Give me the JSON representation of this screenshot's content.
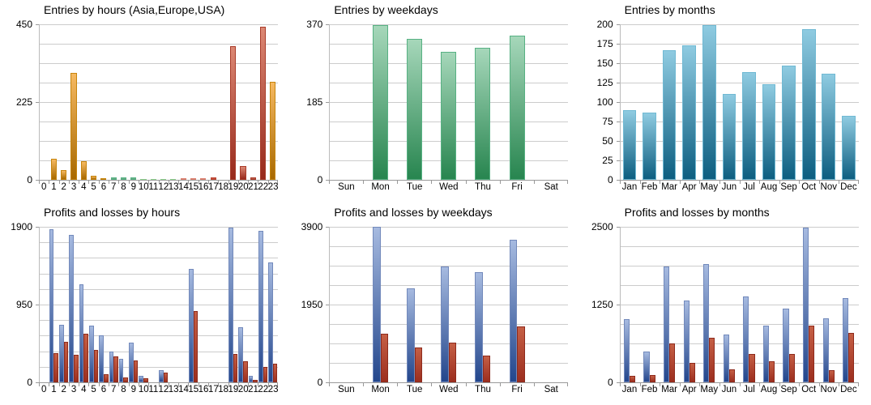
{
  "colors": {
    "background": "#ffffff",
    "gridline": "#cccccc",
    "axis": "#999999",
    "text": "#000000"
  },
  "palette": {
    "orange": {
      "top": "#f6b961",
      "bottom": "#a86900",
      "border": "#c6850e"
    },
    "green": {
      "top": "#a6d7ba",
      "bottom": "#27854f",
      "border": "#57b183"
    },
    "lightgreen": {
      "top": "#c9ecc9",
      "bottom": "#77c677",
      "border": "#8ed28e"
    },
    "salmon": {
      "top": "#f1a593",
      "bottom": "#d9603f",
      "border": "#db8170"
    },
    "red": {
      "top": "#d96551",
      "bottom": "#b23222",
      "border": "#ba4733"
    },
    "darkred": {
      "top": "#dc8874",
      "bottom": "#97291b",
      "border": "#a93b29"
    },
    "profitblue": {
      "top": "#a6bae0",
      "bottom": "#23468c",
      "border": "#7289bb"
    },
    "lossred": {
      "top": "#c55f45",
      "bottom": "#9c2e1e",
      "border": "#8e2a1c"
    },
    "teal": {
      "top": "#8fcbe1",
      "bottom": "#0d5e80",
      "border": "#70b9d3"
    }
  },
  "chart_data": [
    {
      "type": "bar",
      "title": "Entries by hours (Asia,Europe,USA)",
      "categories": [
        "0",
        "1",
        "2",
        "3",
        "4",
        "5",
        "6",
        "7",
        "8",
        "9",
        "10",
        "11",
        "12",
        "13",
        "14",
        "15",
        "16",
        "17",
        "18",
        "19",
        "20",
        "21",
        "22",
        "23"
      ],
      "values": [
        0,
        60,
        28,
        310,
        55,
        12,
        5,
        6,
        8,
        6,
        3,
        1,
        3,
        2,
        4,
        4,
        5,
        8,
        0,
        386,
        40,
        7,
        443,
        283
      ],
      "bar_colors": [
        "orange",
        "orange",
        "orange",
        "orange",
        "orange",
        "orange",
        "orange",
        "green",
        "green",
        "green",
        "lightgreen",
        "lightgreen",
        "lightgreen",
        "lightgreen",
        "salmon",
        "salmon",
        "salmon",
        "red",
        "red",
        "darkred",
        "darkred",
        "darkred",
        "darkred",
        "orange"
      ],
      "ylim": [
        0,
        450
      ],
      "yticks": [
        0,
        225,
        450
      ],
      "grid_divisions": 8,
      "legend": "none"
    },
    {
      "type": "bar",
      "title": "Entries by weekdays",
      "categories": [
        "Sun",
        "Mon",
        "Tue",
        "Wed",
        "Thu",
        "Fri",
        "Sat"
      ],
      "values": [
        0,
        368,
        336,
        305,
        315,
        343,
        0
      ],
      "bar_color": "green",
      "ylim": [
        0,
        370
      ],
      "yticks": [
        0,
        185,
        370
      ],
      "grid_divisions": 8,
      "legend": "none"
    },
    {
      "type": "bar",
      "title": "Entries by months",
      "categories": [
        "Jan",
        "Feb",
        "Mar",
        "Apr",
        "May",
        "Jun",
        "Jul",
        "Aug",
        "Sep",
        "Oct",
        "Nov",
        "Dec"
      ],
      "values": [
        90,
        86,
        167,
        173,
        199,
        110,
        139,
        123,
        147,
        194,
        136,
        82
      ],
      "bar_color": "teal",
      "ylim": [
        0,
        200
      ],
      "yticks": [
        0,
        25,
        50,
        75,
        100,
        125,
        150,
        175,
        200
      ],
      "grid_divisions": 8,
      "legend": "none"
    },
    {
      "type": "bar",
      "title": "Profits and losses by hours",
      "categories": [
        "0",
        "1",
        "2",
        "3",
        "4",
        "5",
        "6",
        "7",
        "8",
        "9",
        "10",
        "11",
        "12",
        "13",
        "14",
        "15",
        "16",
        "17",
        "18",
        "19",
        "20",
        "21",
        "22",
        "23"
      ],
      "series": [
        {
          "name": "profit",
          "color": "profitblue",
          "values": [
            0,
            1870,
            700,
            1805,
            1195,
            695,
            575,
            380,
            290,
            485,
            75,
            0,
            150,
            0,
            0,
            1390,
            0,
            0,
            0,
            1890,
            670,
            80,
            1855,
            1460
          ]
        },
        {
          "name": "loss",
          "color": "lossred",
          "values": [
            0,
            360,
            495,
            335,
            590,
            400,
            100,
            320,
            55,
            270,
            45,
            0,
            120,
            0,
            0,
            875,
            0,
            0,
            0,
            350,
            260,
            30,
            190,
            230
          ]
        }
      ],
      "ylim": [
        0,
        1900
      ],
      "yticks": [
        0,
        950,
        1900
      ],
      "grid_divisions": 10,
      "legend": "none"
    },
    {
      "type": "bar",
      "title": "Profits and losses by weekdays",
      "categories": [
        "Sun",
        "Mon",
        "Tue",
        "Wed",
        "Thu",
        "Fri",
        "Sat"
      ],
      "series": [
        {
          "name": "profit",
          "color": "profitblue",
          "values": [
            0,
            3900,
            2365,
            2895,
            2765,
            3570,
            0
          ]
        },
        {
          "name": "loss",
          "color": "lossred",
          "values": [
            0,
            1215,
            875,
            990,
            675,
            1395,
            0
          ]
        }
      ],
      "ylim": [
        0,
        3900
      ],
      "yticks": [
        0,
        1950,
        3900
      ],
      "grid_divisions": 8,
      "legend": "none"
    },
    {
      "type": "bar",
      "title": "Profits and losses by months",
      "categories": [
        "Jan",
        "Feb",
        "Mar",
        "Apr",
        "May",
        "Jun",
        "Jul",
        "Aug",
        "Sep",
        "Oct",
        "Nov",
        "Dec"
      ],
      "series": [
        {
          "name": "profit",
          "color": "profitblue",
          "values": [
            1015,
            495,
            1865,
            1315,
            1895,
            765,
            1375,
            905,
            1190,
            2490,
            1030,
            1360
          ]
        },
        {
          "name": "loss",
          "color": "lossred",
          "values": [
            105,
            120,
            620,
            310,
            710,
            210,
            460,
            340,
            460,
            910,
            195,
            795
          ]
        }
      ],
      "ylim": [
        0,
        2500
      ],
      "yticks": [
        0,
        1250,
        2500
      ],
      "grid_divisions": 8,
      "legend": "none"
    }
  ]
}
